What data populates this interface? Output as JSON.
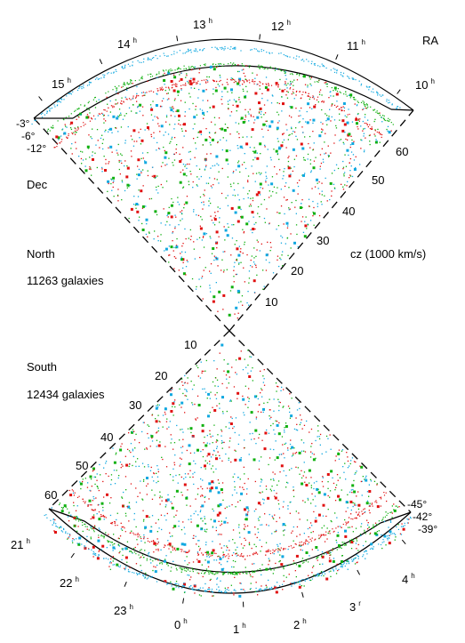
{
  "colors": {
    "dec_band_1": "#e01010",
    "dec_band_2": "#10b010",
    "dec_band_3": "#10a8e0",
    "frame": "#000000"
  },
  "north": {
    "ra_title": "RA",
    "ra_labels": [
      {
        "h": "15",
        "u": "h"
      },
      {
        "h": "14",
        "u": "h"
      },
      {
        "h": "13",
        "u": "h"
      },
      {
        "h": "12",
        "u": "h"
      },
      {
        "h": "11",
        "u": "h"
      },
      {
        "h": "10",
        "u": "h"
      }
    ],
    "dec_labels": [
      "-3°",
      "-6°",
      "-12°"
    ],
    "dec_title": "Dec",
    "cz_ticks": [
      "60",
      "50",
      "40",
      "30",
      "20",
      "10"
    ],
    "cz_axis_label": "cz (1000 km/s)",
    "name": "North",
    "count": "11263 galaxies"
  },
  "south": {
    "ra_labels": [
      {
        "h": "21",
        "u": "h"
      },
      {
        "h": "22",
        "u": "h"
      },
      {
        "h": "23",
        "u": "h"
      },
      {
        "h": "0",
        "u": "h"
      },
      {
        "h": "1",
        "u": "h"
      },
      {
        "h": "2",
        "u": "h"
      },
      {
        "h": "3",
        "u": "r"
      },
      {
        "h": "4",
        "u": "h"
      }
    ],
    "dec_labels": [
      "-45°",
      "-42°",
      "-39°"
    ],
    "cz_ticks": [
      "10",
      "20",
      "30",
      "40",
      "50",
      "60"
    ],
    "name": "South",
    "count": "12434 galaxies"
  }
}
